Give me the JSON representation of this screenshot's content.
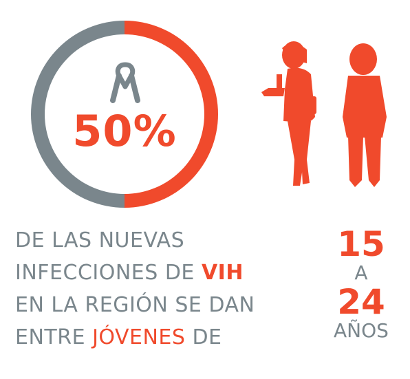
{
  "colors": {
    "accent": "#f04a2c",
    "grey": "#7a868c",
    "white": "#ffffff"
  },
  "stat": {
    "value": 50,
    "label": "50%",
    "icon": "awareness-ribbon-icon"
  },
  "description": {
    "line1": "DE LAS NUEVAS",
    "line2_a": "INFECCIONES DE ",
    "line2_b": "VIH",
    "line3": "EN LA REGIÓN SE DAN",
    "line4_a": "ENTRE ",
    "line4_b": "JÓVENES",
    "line4_c": " DE"
  },
  "age_range": {
    "from": "15",
    "sep": "A",
    "to": "24",
    "unit": "AÑOS"
  }
}
